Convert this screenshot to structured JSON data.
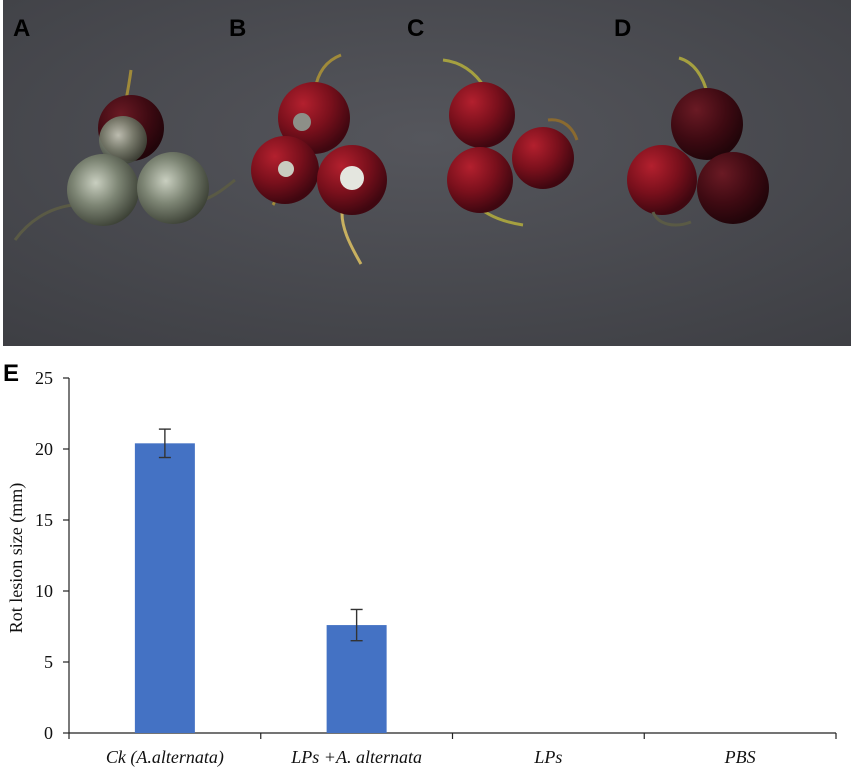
{
  "photo_panel": {
    "labels": [
      "A",
      "B",
      "C",
      "D"
    ],
    "background_color": "#4b4c52",
    "fruit_color": "#6e0f1a",
    "mold_color": "#6f7667"
  },
  "chart_data": {
    "type": "bar",
    "panel_label": "E",
    "categories": [
      "Ck (A.alternata)",
      "LPs +A. alternata",
      "LPs",
      "PBS"
    ],
    "values": [
      20.4,
      7.6,
      0,
      0
    ],
    "errors": [
      1.0,
      1.1,
      0,
      0
    ],
    "ylabel": "Rot  lesion size (mm)",
    "xlabel": "",
    "ylim": [
      0,
      25
    ],
    "yticks": [
      0,
      5,
      10,
      15,
      20,
      25
    ],
    "bar_color": "#4472c4",
    "grid": false
  }
}
